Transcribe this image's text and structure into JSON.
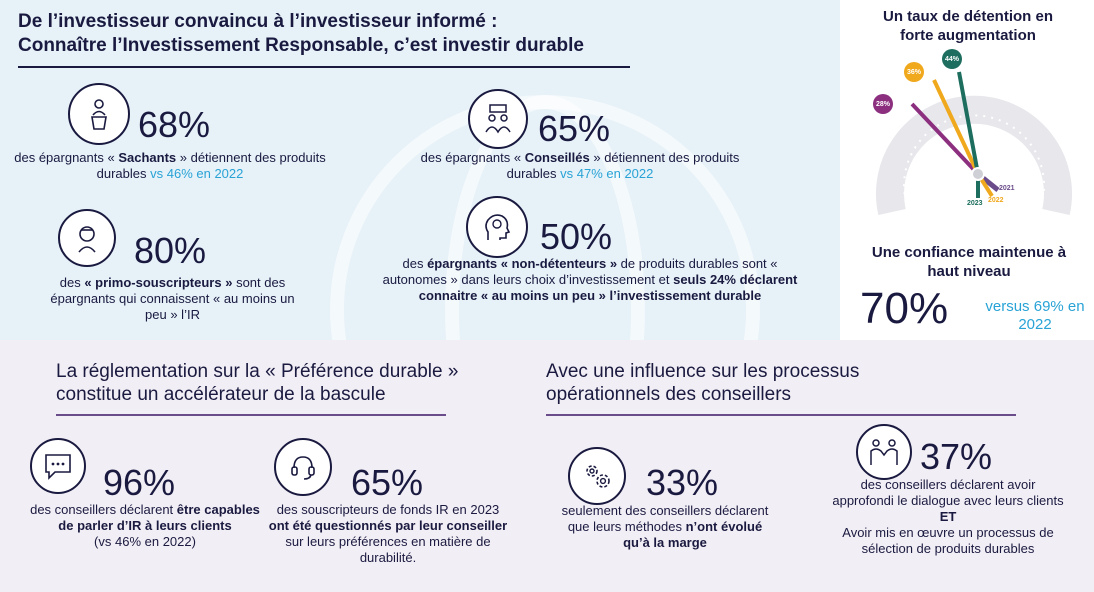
{
  "header": {
    "title_line1": "De l’investisseur convaincu à l’investisseur informé :",
    "title_line2": "Connaître l’Investissement Responsable, c’est investir durable"
  },
  "stats_top": [
    {
      "pct": "68%",
      "pre": "des épargnants « ",
      "bold": "Sachants",
      "post": " » détiennent des produits durables ",
      "compare": "vs 46% en 2022"
    },
    {
      "pct": "65%",
      "pre": "des épargnants « ",
      "bold": "Conseillés",
      "post": " » détiennent des produits durables ",
      "compare": "vs 47% en 2022"
    },
    {
      "pct": "80%",
      "pre": "des ",
      "bold": "« primo-souscripteurs »",
      "post": " sont des épargnants qui connaissent « au moins un peu » l’IR"
    },
    {
      "pct": "50%",
      "pre": "des ",
      "bold": "épargnants « non-détenteurs »",
      "mid": " de produits durables sont « autonomes » dans leurs choix d’investissement et ",
      "bold2": "seuls 24% déclarent connaitre « au moins un peu » l’investissement durable"
    }
  ],
  "right": {
    "detention_title": "Un taux de détention en forte augmentation",
    "gauge": [
      {
        "label": "28%",
        "year": "2021",
        "color": "#8b2f7e"
      },
      {
        "label": "36%",
        "year": "2022",
        "color": "#f0a81c"
      },
      {
        "label": "44%",
        "year": "2023",
        "color": "#1d6e5e"
      }
    ],
    "confidence_title": "Une confiance maintenue à haut niveau",
    "confidence_pct": "70%",
    "confidence_compare": "versus 69% en 2022"
  },
  "bottom": {
    "left_title": "La réglementation sur la « Préférence durable » constitue un accélérateur de la bascule",
    "right_title": "Avec une influence sur les processus opérationnels des conseillers",
    "stats": [
      {
        "pct": "96%",
        "pre": "des conseillers déclarent ",
        "bold": "être capables de parler d’IR à leurs clients",
        "post": "(vs 46% en 2022)"
      },
      {
        "pct": "65%",
        "pre": "des souscripteurs de fonds IR en 2023 ",
        "bold": "ont été questionnés par leur conseiller",
        "post": " sur leurs préférences en matière de durabilité."
      },
      {
        "pct": "33%",
        "pre": "seulement des conseillers déclarent que leurs méthodes ",
        "bold": "n’ont évolué qu’à la marge"
      },
      {
        "pct": "37%",
        "pre": "des conseillers déclarent avoir approfondi le dialogue avec leurs clients",
        "bold": "ET",
        "post": "Avoir mis en œuvre un processus de sélection de produits durables"
      }
    ]
  }
}
